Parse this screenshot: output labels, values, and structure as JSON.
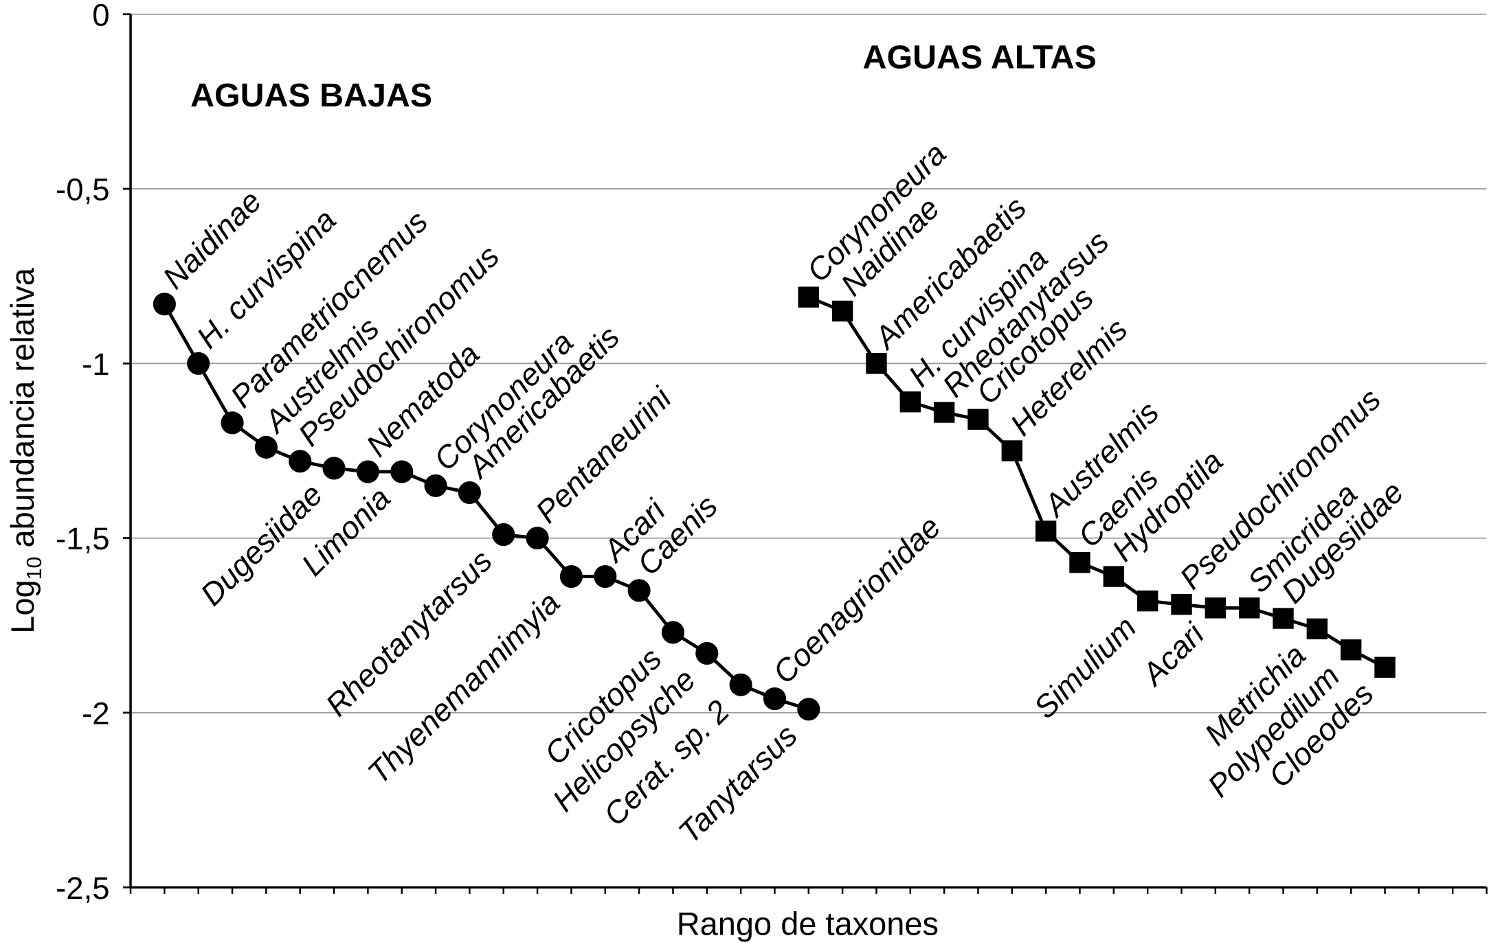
{
  "chart_data": {
    "type": "line",
    "title": "",
    "xlabel": "Rango de taxones",
    "ylabel_main": "Log",
    "ylabel_sub": "10",
    "ylabel_rest": " abundancia relativa",
    "ylim": [
      -2.5,
      0
    ],
    "xlim": [
      0,
      40
    ],
    "yticks": [
      0,
      -0.5,
      -1,
      -1.5,
      -2,
      -2.5
    ],
    "ytick_labels": [
      "0",
      "-0,5",
      "-1",
      "-1,5",
      "-2",
      "-2,5"
    ],
    "grid": true,
    "series": [
      {
        "name": "AGUAS BAJAS",
        "marker": "circle",
        "x": [
          1,
          2,
          3,
          4,
          5,
          6,
          7,
          8,
          9,
          10,
          11,
          12,
          13,
          14,
          15,
          16,
          17,
          18,
          19,
          20
        ],
        "values": [
          -0.83,
          -1.0,
          -1.17,
          -1.24,
          -1.28,
          -1.3,
          -1.31,
          -1.31,
          -1.35,
          -1.37,
          -1.49,
          -1.5,
          -1.61,
          -1.61,
          -1.65,
          -1.77,
          -1.83,
          -1.92,
          -1.96,
          -1.99
        ],
        "labels": [
          "Naidinae",
          "H. curvispina",
          "Parametriocnemus",
          "Austrelmis",
          "Pseudochironomus",
          "Dugesiidae",
          "Nematoda",
          "Limonia",
          "Corynoneura",
          "Americabaetis",
          "Rheotanytarsus",
          "Pentaneurini",
          "Thyenemannimyia",
          "Acari",
          "Caenis",
          "Cricotopus",
          "Helicopsyche",
          "Cerat. sp. 2",
          "Coenagrionidae",
          "Tanytarsus"
        ],
        "label_side": [
          "above",
          "above",
          "above",
          "above",
          "above",
          "below",
          "above",
          "below",
          "above",
          "above",
          "below",
          "above",
          "below",
          "above",
          "above",
          "below",
          "below",
          "below",
          "above",
          "below"
        ]
      },
      {
        "name": "AGUAS ALTAS",
        "marker": "square",
        "x": [
          20,
          21,
          22,
          23,
          24,
          25,
          26,
          27,
          28,
          29,
          30,
          31,
          32,
          33,
          34,
          35,
          36,
          37
        ],
        "values": [
          -0.81,
          -0.85,
          -1.0,
          -1.11,
          -1.14,
          -1.16,
          -1.25,
          -1.48,
          -1.57,
          -1.61,
          -1.68,
          -1.69,
          -1.7,
          -1.7,
          -1.73,
          -1.76,
          -1.82,
          -1.87
        ],
        "labels": [
          "Corynoneura",
          "Naidinae",
          "Americabaetis",
          "H. curvispina",
          "Rheotanytarsus",
          "Cricotopus",
          "Heterelmis",
          "Austrelmis",
          "Caenis",
          "Hydroptila",
          "Simulium",
          "Pseudochironomus",
          "Acari",
          "Smicridea",
          "Dugesiidae",
          "Metrichia",
          "Polypedilum",
          "Cloeodes"
        ],
        "label_side": [
          "above",
          "above",
          "above",
          "above",
          "above",
          "above",
          "above",
          "above",
          "above",
          "above",
          "below",
          "above",
          "below",
          "above",
          "above",
          "below",
          "below",
          "below"
        ]
      }
    ]
  }
}
